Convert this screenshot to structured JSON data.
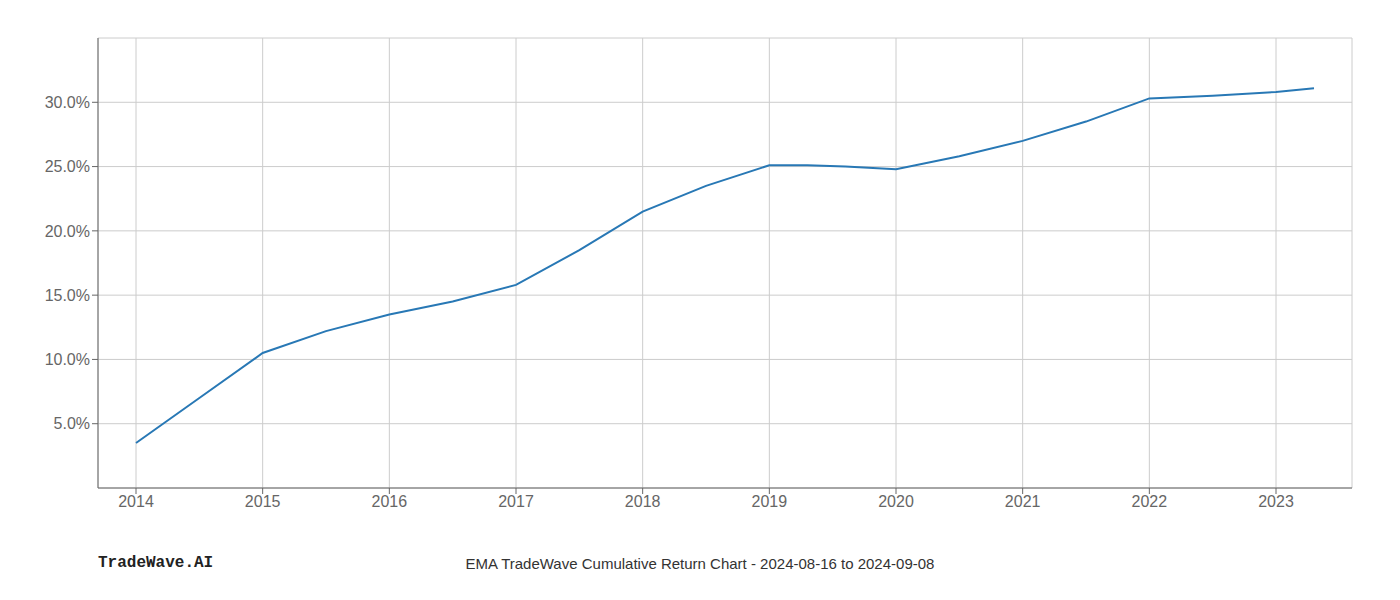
{
  "chart_data": {
    "type": "line",
    "title": "EMA TradeWave Cumulative Return Chart - 2024-08-16 to 2024-09-08",
    "annotations": [
      "TradeWave.AI"
    ],
    "x": [
      2014.0,
      2014.5,
      2015.0,
      2015.5,
      2016.0,
      2016.5,
      2017.0,
      2017.5,
      2018.0,
      2018.5,
      2019.0,
      2019.3,
      2019.6,
      2020.0,
      2020.5,
      2021.0,
      2021.5,
      2022.0,
      2022.5,
      2023.0,
      2023.3
    ],
    "values": [
      3.5,
      7.0,
      10.5,
      12.2,
      13.5,
      14.5,
      15.8,
      18.5,
      21.5,
      23.5,
      25.1,
      25.1,
      25.0,
      24.8,
      25.8,
      27.0,
      28.5,
      30.3,
      30.5,
      30.8,
      31.1
    ],
    "color": "#2878b5",
    "xlim": [
      2013.7,
      2023.6
    ],
    "ylim": [
      0,
      35
    ],
    "xticks": [
      2014,
      2015,
      2016,
      2017,
      2018,
      2019,
      2020,
      2021,
      2022,
      2023
    ],
    "yticks": [
      {
        "value": 5.0,
        "label": "5.0%"
      },
      {
        "value": 10.0,
        "label": "10.0%"
      },
      {
        "value": 15.0,
        "label": "15.0%"
      },
      {
        "value": 20.0,
        "label": "20.0%"
      },
      {
        "value": 25.0,
        "label": "25.0%"
      },
      {
        "value": 30.0,
        "label": "30.0%"
      }
    ],
    "grid": true
  }
}
